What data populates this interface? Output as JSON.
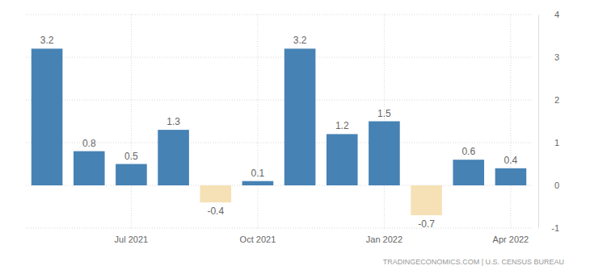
{
  "chart_data": {
    "type": "bar",
    "categories": [
      null,
      null,
      "Jul 2021",
      null,
      null,
      "Oct 2021",
      null,
      null,
      "Jan 2022",
      null,
      null,
      "Apr 2022"
    ],
    "values": [
      3.2,
      0.8,
      0.5,
      1.3,
      -0.4,
      0.1,
      3.2,
      1.2,
      1.5,
      -0.7,
      0.6,
      0.4
    ],
    "colors": [
      "#4682b4",
      "#4682b4",
      "#4682b4",
      "#4682b4",
      "#f5e1b5",
      "#4682b4",
      "#4682b4",
      "#4682b4",
      "#4682b4",
      "#f5e1b5",
      "#4682b4",
      "#4682b4"
    ],
    "ylim": [
      -1,
      4
    ],
    "yticks": [
      -1,
      0,
      1,
      2,
      3,
      4
    ],
    "grid": true,
    "data_labels": true,
    "annotations": [
      "TRADINGECONOMICS.COM | U.S. CENSUS BUREAU"
    ]
  }
}
